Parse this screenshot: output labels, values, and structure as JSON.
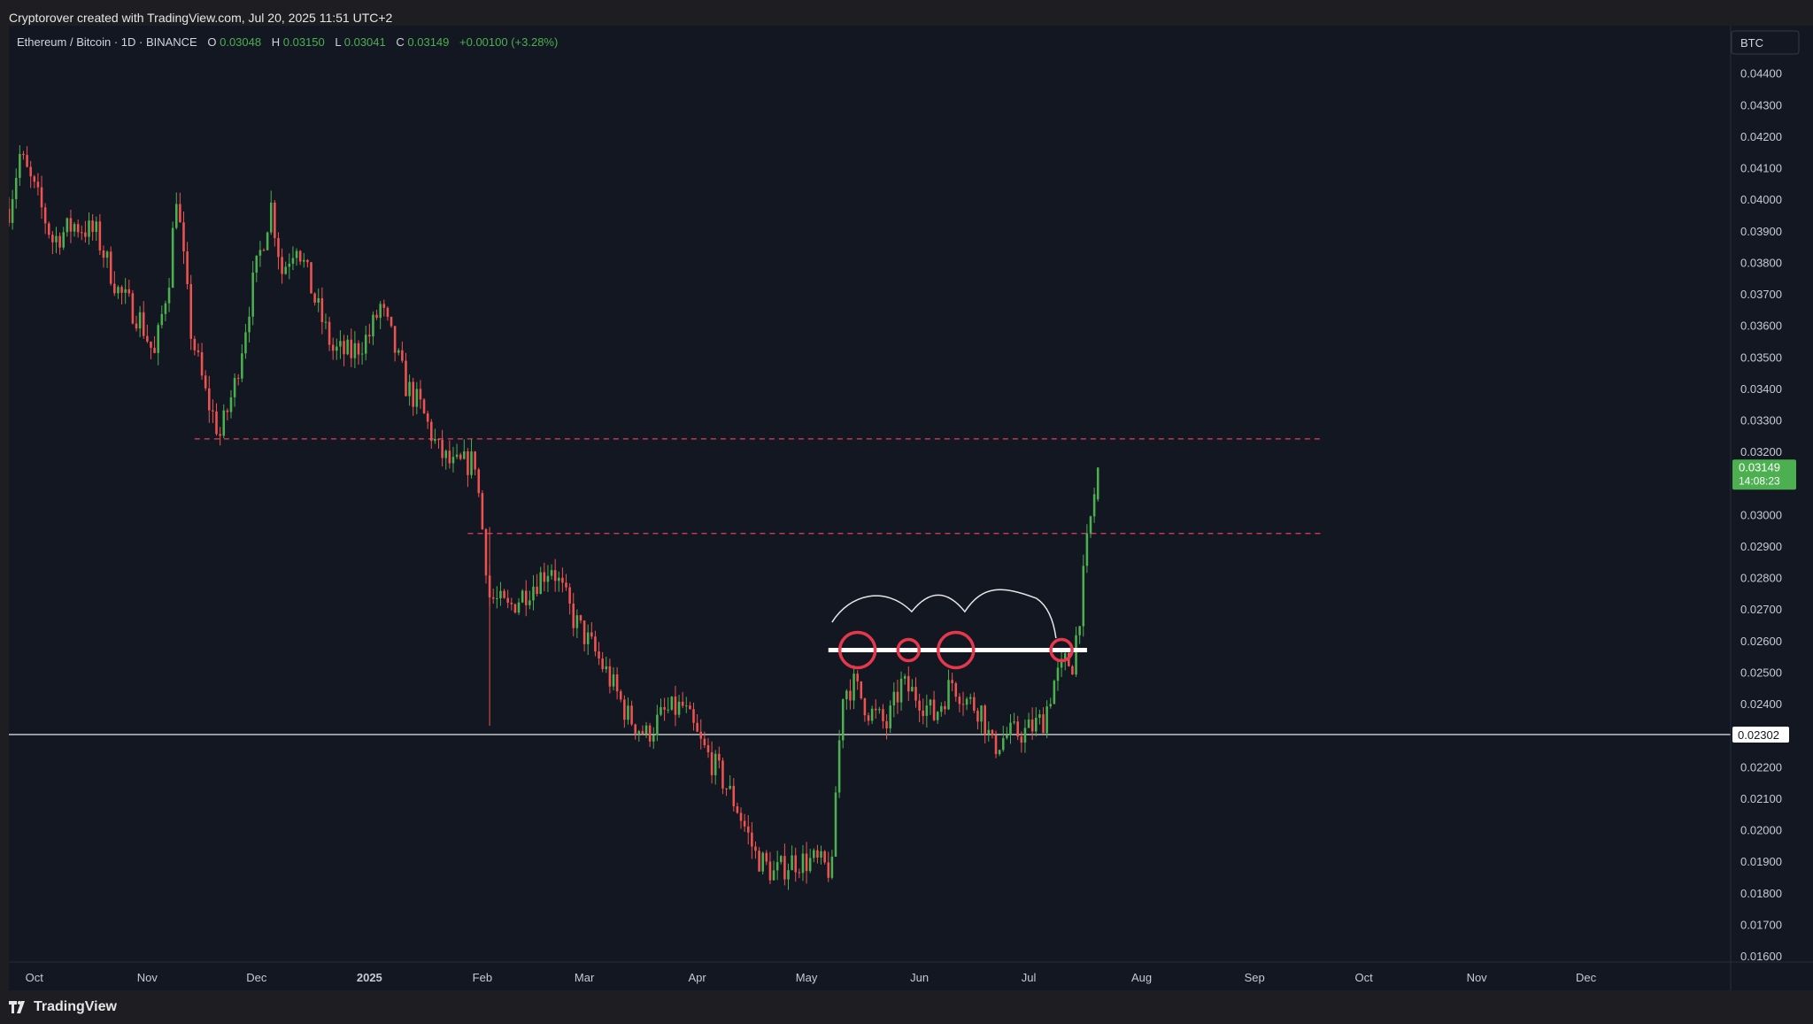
{
  "header": {
    "attribution": "Cryptorover created with TradingView.com, Jul 20, 2025 11:51 UTC+2"
  },
  "legend": {
    "symbol": "Ethereum / Bitcoin · 1D · BINANCE",
    "o_label": "O",
    "o_value": "0.03048",
    "h_label": "H",
    "h_value": "0.03150",
    "l_label": "L",
    "l_value": "0.03041",
    "c_label": "C",
    "c_value": "0.03149",
    "change": "+0.00100 (+3.28%)"
  },
  "currency_button": "BTC",
  "price_badge": {
    "price": "0.03149",
    "countdown": "14:08:23"
  },
  "crosshair_label": "0.02302",
  "footer": {
    "brand": "TradingView"
  },
  "colors": {
    "up": "#26a69a",
    "up_body": "#4caf50",
    "down": "#ef5350",
    "background": "#131722",
    "badge": "#4caf50",
    "marker": "#e5394b",
    "level": "#e0425a"
  },
  "chart_data": {
    "type": "candlestick",
    "title": "",
    "y_axis_ticks": [
      "0.04400",
      "0.04300",
      "0.04200",
      "0.04100",
      "0.04000",
      "0.03900",
      "0.03800",
      "0.03700",
      "0.03600",
      "0.03500",
      "0.03400",
      "0.03300",
      "0.03200",
      "0.03100",
      "0.03000",
      "0.02900",
      "0.02800",
      "0.02700",
      "0.02600",
      "0.02500",
      "0.02400",
      "0.02300",
      "0.02200",
      "0.02100",
      "0.02000",
      "0.01900",
      "0.01800",
      "0.01700",
      "0.01600"
    ],
    "ylim": [
      0.016,
      0.0443
    ],
    "x_axis_ticks": [
      "Oct",
      "Nov",
      "Dec",
      "2025",
      "Feb",
      "Mar",
      "Apr",
      "May",
      "Jun",
      "Jul",
      "Aug",
      "Sep",
      "Oct",
      "Nov",
      "Dec"
    ],
    "x_range": [
      "2024-09-24",
      "2025-12-31"
    ],
    "price_path": [
      [
        "2024-09-24",
        0.0397
      ],
      [
        "2024-09-27",
        0.0414
      ],
      [
        "2024-10-02",
        0.04
      ],
      [
        "2024-10-06",
        0.0387
      ],
      [
        "2024-10-12",
        0.0392
      ],
      [
        "2024-10-18",
        0.0389
      ],
      [
        "2024-10-24",
        0.0371
      ],
      [
        "2024-10-30",
        0.0362
      ],
      [
        "2024-11-03",
        0.035
      ],
      [
        "2024-11-07",
        0.0376
      ],
      [
        "2024-11-09",
        0.0402
      ],
      [
        "2024-11-13",
        0.0358
      ],
      [
        "2024-11-17",
        0.0338
      ],
      [
        "2024-11-21",
        0.0325
      ],
      [
        "2024-11-25",
        0.0341
      ],
      [
        "2024-11-30",
        0.0373
      ],
      [
        "2024-12-05",
        0.0398
      ],
      [
        "2024-12-08",
        0.0377
      ],
      [
        "2024-12-12",
        0.0387
      ],
      [
        "2024-12-17",
        0.0368
      ],
      [
        "2024-12-22",
        0.0352
      ],
      [
        "2024-12-27",
        0.0351
      ],
      [
        "2025-01-01",
        0.0357
      ],
      [
        "2025-01-04",
        0.0366
      ],
      [
        "2025-01-07",
        0.0356
      ],
      [
        "2025-01-11",
        0.0341
      ],
      [
        "2025-01-15",
        0.0334
      ],
      [
        "2025-01-20",
        0.032
      ],
      [
        "2025-01-24",
        0.0315
      ],
      [
        "2025-01-30",
        0.0317
      ],
      [
        "2025-02-03",
        0.0274
      ],
      [
        "2025-02-08",
        0.027
      ],
      [
        "2025-02-15",
        0.0278
      ],
      [
        "2025-02-20",
        0.0284
      ],
      [
        "2025-02-26",
        0.0267
      ],
      [
        "2025-03-03",
        0.0258
      ],
      [
        "2025-03-07",
        0.025
      ],
      [
        "2025-03-13",
        0.0236
      ],
      [
        "2025-03-18",
        0.023
      ],
      [
        "2025-03-23",
        0.0237
      ],
      [
        "2025-03-28",
        0.0239
      ],
      [
        "2025-04-02",
        0.0227
      ],
      [
        "2025-04-07",
        0.0218
      ],
      [
        "2025-04-12",
        0.0207
      ],
      [
        "2025-04-17",
        0.0192
      ],
      [
        "2025-04-22",
        0.0186
      ],
      [
        "2025-04-27",
        0.019
      ],
      [
        "2025-05-03",
        0.019
      ],
      [
        "2025-05-08",
        0.0187
      ],
      [
        "2025-05-09",
        0.0212
      ],
      [
        "2025-05-11",
        0.0244
      ],
      [
        "2025-05-14",
        0.0246
      ],
      [
        "2025-05-18",
        0.0238
      ],
      [
        "2025-05-23",
        0.0233
      ],
      [
        "2025-05-27",
        0.0246
      ],
      [
        "2025-06-01",
        0.0242
      ],
      [
        "2025-06-05",
        0.0236
      ],
      [
        "2025-06-10",
        0.0247
      ],
      [
        "2025-06-14",
        0.0241
      ],
      [
        "2025-06-18",
        0.0238
      ],
      [
        "2025-06-21",
        0.0226
      ],
      [
        "2025-06-25",
        0.023
      ],
      [
        "2025-06-30",
        0.0231
      ],
      [
        "2025-07-05",
        0.0235
      ],
      [
        "2025-07-08",
        0.0247
      ],
      [
        "2025-07-11",
        0.0253
      ],
      [
        "2025-07-13",
        0.0253
      ],
      [
        "2025-07-15",
        0.0269
      ],
      [
        "2025-07-17",
        0.029
      ],
      [
        "2025-07-20",
        0.0315
      ]
    ],
    "last_candle": {
      "date": "2025-07-20",
      "open": 0.03048,
      "high": 0.0315,
      "low": 0.03041,
      "close": 0.03149
    },
    "horizontal_levels": [
      {
        "price": 0.0324,
        "style": "dashed",
        "from": "2024-11-14",
        "to": "2025-09-20"
      },
      {
        "price": 0.0294,
        "style": "dashed",
        "from": "2025-01-28",
        "to": "2025-09-20"
      },
      {
        "price": 0.0257,
        "style": "solid-white",
        "from": "2025-05-07",
        "to": "2025-07-17"
      },
      {
        "price": 0.02302,
        "style": "thin-white",
        "from": "2024-09-24",
        "to": "2025-12-31"
      }
    ],
    "circled_points": [
      {
        "date": "2025-05-15",
        "price": 0.0257
      },
      {
        "date": "2025-05-29",
        "price": 0.0257
      },
      {
        "date": "2025-06-11",
        "price": 0.0257
      },
      {
        "date": "2025-07-10",
        "price": 0.0257
      }
    ],
    "grid": false,
    "legend_position": "top-left"
  }
}
